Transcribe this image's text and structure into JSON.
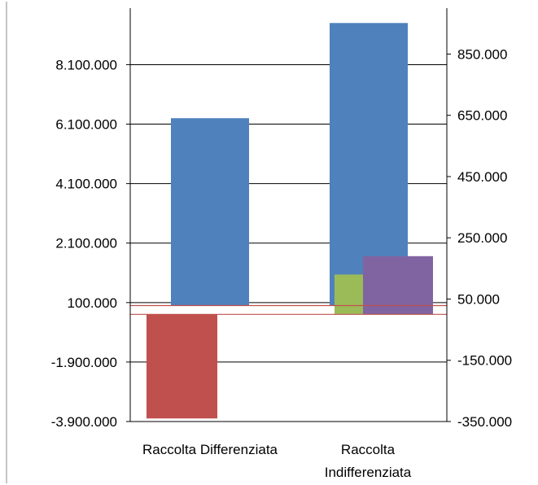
{
  "chart_data": {
    "type": "bar",
    "title": "",
    "categories": [
      "Raccolta Differenziata",
      "Raccolta Indifferenziata"
    ],
    "category_label_lines": [
      [
        "Raccolta Differenziata"
      ],
      [
        "Raccolta",
        "Indifferenziata"
      ]
    ],
    "primary_axis": {
      "side": "left",
      "ticks": [
        "8.100.000",
        "6.100.000",
        "4.100.000",
        "2.100.000",
        "100.000",
        "-1.900.000",
        "-3.900.000"
      ],
      "ylim": [
        -3900000,
        10000000
      ]
    },
    "secondary_axis": {
      "side": "right",
      "ticks": [
        "850.000",
        "650.000",
        "450.000",
        "250.000",
        "50.000",
        "-150.000",
        "-350.000"
      ],
      "ylim": [
        -350000,
        1000000
      ]
    },
    "series": [
      {
        "axis": "primary",
        "color": "#4F81BD",
        "values": [
          6300000,
          9500000
        ]
      },
      {
        "axis": "secondary",
        "color": "#C0504D",
        "values": [
          -340000,
          null
        ]
      },
      {
        "axis": "secondary",
        "color": "#9BBB59",
        "values": [
          null,
          130000
        ]
      },
      {
        "axis": "secondary",
        "color": "#8064A2",
        "values": [
          null,
          190000
        ]
      }
    ],
    "gridlines": true,
    "legend": "none"
  }
}
